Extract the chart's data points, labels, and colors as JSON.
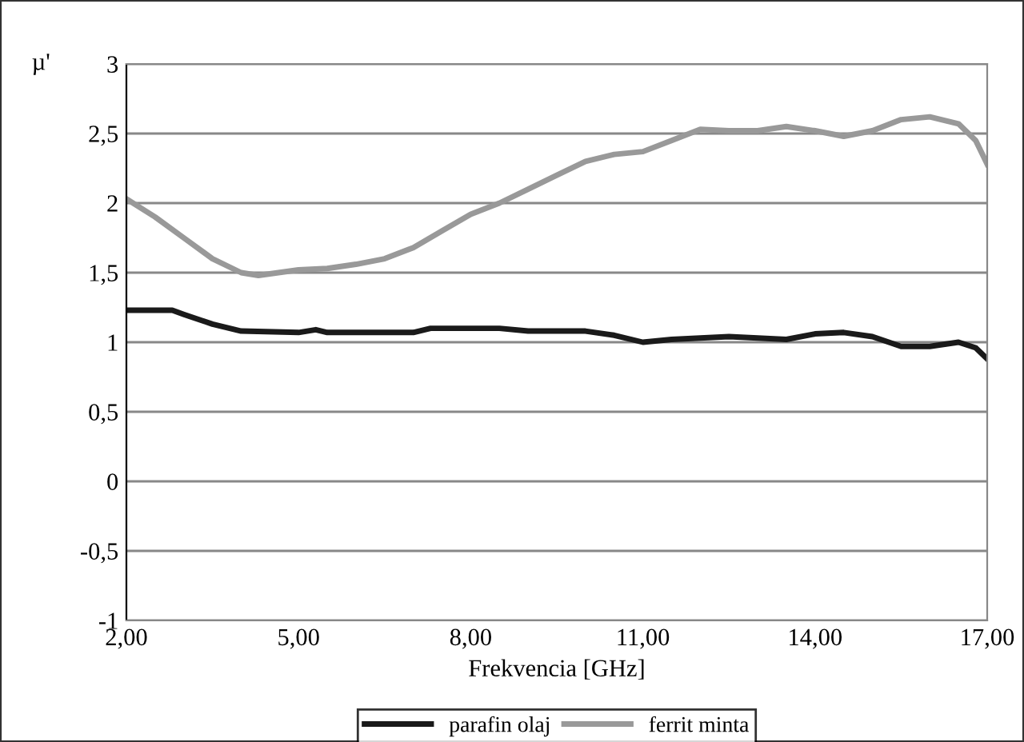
{
  "chart_data": {
    "type": "line",
    "xlabel": "Frekvencia [GHz]",
    "ylabel": "µ'",
    "xlim": [
      2,
      17
    ],
    "xticks": [
      {
        "value": 2,
        "label": "2,00"
      },
      {
        "value": 5,
        "label": "5,00"
      },
      {
        "value": 8,
        "label": "8,00"
      },
      {
        "value": 11,
        "label": "11,00"
      },
      {
        "value": 14,
        "label": "14,00"
      },
      {
        "value": 17,
        "label": "17,00"
      }
    ],
    "ylim": [
      -1,
      3
    ],
    "yticks": [
      {
        "value": -1,
        "label": "-1"
      },
      {
        "value": -0.5,
        "label": "-0,5"
      },
      {
        "value": 0,
        "label": "0"
      },
      {
        "value": 0.5,
        "label": "0,5"
      },
      {
        "value": 1,
        "label": "1"
      },
      {
        "value": 1.5,
        "label": "1,5"
      },
      {
        "value": 2,
        "label": "2"
      },
      {
        "value": 2.5,
        "label": "2,5"
      },
      {
        "value": 3,
        "label": "3"
      }
    ],
    "grid": "y",
    "legend": "bottom",
    "line_style": "solid",
    "marker": "none",
    "series": [
      {
        "name": "parafin olaj",
        "color": "#1a1a1a",
        "x": [
          2,
          2.8,
          3,
          3.5,
          4,
          5,
          5.3,
          5.5,
          7,
          7.3,
          8.5,
          9,
          10,
          10.5,
          11,
          11.5,
          12.5,
          13.5,
          14,
          14.5,
          15,
          15.5,
          16,
          16.5,
          16.8,
          17
        ],
        "values": [
          1.23,
          1.23,
          1.2,
          1.13,
          1.08,
          1.07,
          1.09,
          1.07,
          1.07,
          1.1,
          1.1,
          1.08,
          1.08,
          1.05,
          1.0,
          1.02,
          1.04,
          1.02,
          1.06,
          1.07,
          1.04,
          0.97,
          0.97,
          1.0,
          0.96,
          0.88
        ]
      },
      {
        "name": "ferrit minta",
        "color": "#999999",
        "x": [
          2,
          2.5,
          3,
          3.5,
          4,
          4.3,
          5,
          5.5,
          6,
          6.5,
          7,
          7.5,
          8,
          8.5,
          9,
          9.5,
          10,
          10.5,
          11,
          11.5,
          12,
          12.5,
          13,
          13.5,
          14,
          14.5,
          15,
          15.5,
          16,
          16.5,
          16.8,
          17
        ],
        "values": [
          2.03,
          1.9,
          1.75,
          1.6,
          1.5,
          1.48,
          1.52,
          1.53,
          1.56,
          1.6,
          1.68,
          1.8,
          1.92,
          2.0,
          2.1,
          2.2,
          2.3,
          2.35,
          2.37,
          2.45,
          2.53,
          2.52,
          2.52,
          2.55,
          2.52,
          2.48,
          2.52,
          2.6,
          2.62,
          2.57,
          2.45,
          2.28
        ]
      }
    ]
  }
}
